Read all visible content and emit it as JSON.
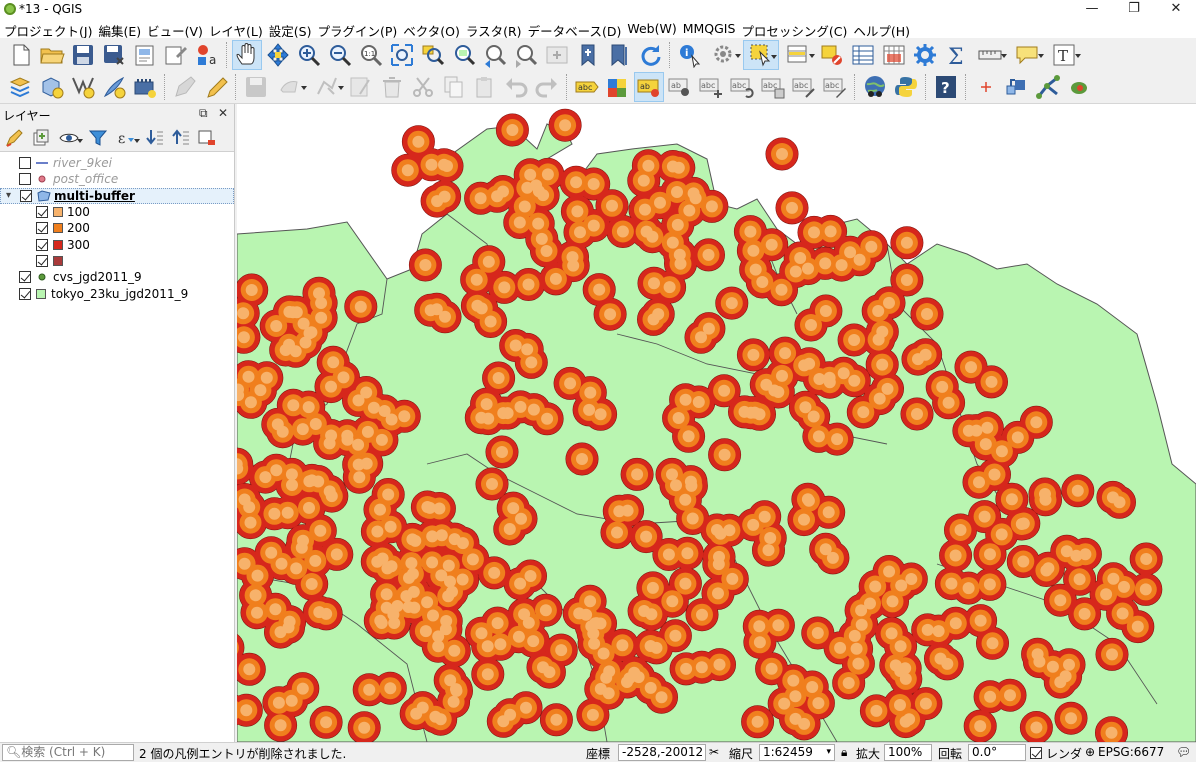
{
  "window": {
    "title": "*13 - QGIS",
    "controls": [
      "—",
      "❐",
      "✕"
    ]
  },
  "menus": [
    "プロジェクト(J)",
    "編集(E)",
    "ビュー(V)",
    "レイヤ(L)",
    "設定(S)",
    "プラグイン(P)",
    "ベクタ(O)",
    "ラスタ(R)",
    "データベース(D)",
    "Web(W)",
    "MMQGIS",
    "プロセッシング(C)",
    "ヘルプ(H)"
  ],
  "layers_panel": {
    "title": "レイヤー",
    "float_button": "⧉",
    "close_button": "✕",
    "layers": [
      {
        "name": "river_9kei",
        "checked": false,
        "style": "dim",
        "symbol": "line",
        "color": "#6a7fc9"
      },
      {
        "name": "post_office",
        "checked": false,
        "style": "dim",
        "symbol": "point",
        "color": "#e07a8a"
      },
      {
        "name": "multi-buffer",
        "checked": true,
        "style": "bold",
        "symbol": "polygon",
        "color": "#8fb7e8",
        "expanded": true,
        "classes": [
          {
            "label": "100",
            "checked": true,
            "color": "#f7b26b"
          },
          {
            "label": "200",
            "checked": true,
            "color": "#f07f1d"
          },
          {
            "label": "300",
            "checked": true,
            "color": "#d6271c"
          },
          {
            "label": "",
            "checked": true,
            "color": "#a93a3a"
          }
        ]
      },
      {
        "name": "cvs_jgd2011_9",
        "checked": true,
        "style": "normal",
        "symbol": "point",
        "color": "#5c9a3c"
      },
      {
        "name": "tokyo_23ku_jgd2011_9",
        "checked": true,
        "style": "normal",
        "symbol": "polygon",
        "color": "#b9f5b1"
      }
    ]
  },
  "map": {
    "land_color": "#b9f5b1",
    "boundary_color": "#555555",
    "buffer_colors": {
      "outer": "#d6271c",
      "middle": "#f07f1d",
      "inner": "#f7b26b",
      "outline": "#7a1010"
    }
  },
  "statusbar": {
    "search_placeholder": "検索 (Ctrl + K)",
    "message": "2 個の凡例エントリが削除されました.",
    "coord_label": "座標",
    "coord_value": "-2528,-20012",
    "scale_label": "縮尺",
    "scale_value": "1:62459",
    "magnifier_label": "拡大",
    "magnifier_value": "100%",
    "rotation_label": "回転",
    "rotation_value": "0.0°",
    "render_label": "レンダ",
    "crs": "EPSG:6677"
  }
}
